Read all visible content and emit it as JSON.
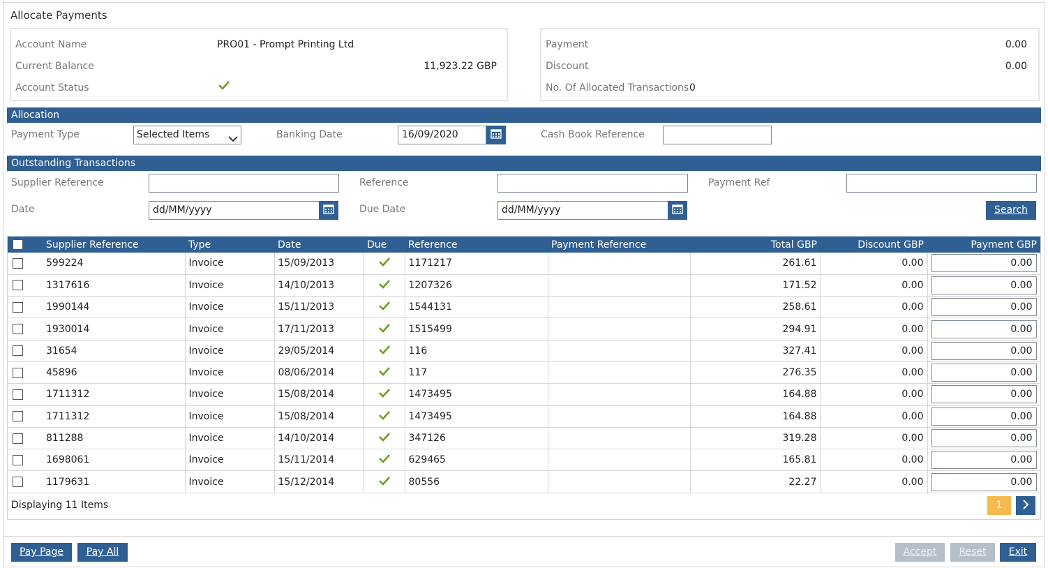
{
  "window": {
    "title": "Allocate Payments"
  },
  "account": {
    "name_label": "Account Name",
    "name_value": "PRO01 - Prompt Printing Ltd",
    "balance_label": "Current Balance",
    "balance_value": "11,923.22 GBP",
    "status_label": "Account Status",
    "status_icon": "check-icon"
  },
  "summary": {
    "payment_label": "Payment",
    "payment_value": "0.00",
    "discount_label": "Discount",
    "discount_value": "0.00",
    "allocated_label": "No. Of Allocated Transactions",
    "allocated_value": "0"
  },
  "allocation": {
    "section_title": "Allocation",
    "payment_type_label": "Payment Type",
    "payment_type_value": "Selected Items",
    "banking_date_label": "Banking Date",
    "banking_date_value": "16/09/2020",
    "cash_book_label": "Cash Book Reference",
    "cash_book_value": ""
  },
  "outstanding": {
    "section_title": "Outstanding Transactions",
    "supplier_ref_label": "Supplier Reference",
    "reference_label": "Reference",
    "payment_ref_label": "Payment Ref",
    "date_label": "Date",
    "date_placeholder": "dd/MM/yyyy",
    "due_date_label": "Due Date",
    "due_date_placeholder": "dd/MM/yyyy",
    "search_label": "Search"
  },
  "grid": {
    "columns": [
      "Supplier Reference",
      "Type",
      "Date",
      "Due",
      "Reference",
      "Payment Reference",
      "Total GBP",
      "Discount GBP",
      "Payment GBP"
    ],
    "rows": [
      {
        "supplier_ref": "599224",
        "type": "Invoice",
        "date": "15/09/2013",
        "reference": "1171217",
        "payment_ref": "",
        "total": "261.61",
        "discount": "0.00",
        "payment": "0.00"
      },
      {
        "supplier_ref": "1317616",
        "type": "Invoice",
        "date": "14/10/2013",
        "reference": "1207326",
        "payment_ref": "",
        "total": "171.52",
        "discount": "0.00",
        "payment": "0.00"
      },
      {
        "supplier_ref": "1990144",
        "type": "Invoice",
        "date": "15/11/2013",
        "reference": "1544131",
        "payment_ref": "",
        "total": "258.61",
        "discount": "0.00",
        "payment": "0.00"
      },
      {
        "supplier_ref": "1930014",
        "type": "Invoice",
        "date": "17/11/2013",
        "reference": "1515499",
        "payment_ref": "",
        "total": "294.91",
        "discount": "0.00",
        "payment": "0.00"
      },
      {
        "supplier_ref": "31654",
        "type": "Invoice",
        "date": "29/05/2014",
        "reference": "116",
        "payment_ref": "",
        "total": "327.41",
        "discount": "0.00",
        "payment": "0.00"
      },
      {
        "supplier_ref": "45896",
        "type": "Invoice",
        "date": "08/06/2014",
        "reference": "117",
        "payment_ref": "",
        "total": "276.35",
        "discount": "0.00",
        "payment": "0.00"
      },
      {
        "supplier_ref": "1711312",
        "type": "Invoice",
        "date": "15/08/2014",
        "reference": "1473495",
        "payment_ref": "",
        "total": "164.88",
        "discount": "0.00",
        "payment": "0.00"
      },
      {
        "supplier_ref": "1711312",
        "type": "Invoice",
        "date": "15/08/2014",
        "reference": "1473495",
        "payment_ref": "",
        "total": "164.88",
        "discount": "0.00",
        "payment": "0.00"
      },
      {
        "supplier_ref": "811288",
        "type": "Invoice",
        "date": "14/10/2014",
        "reference": "347126",
        "payment_ref": "",
        "total": "319.28",
        "discount": "0.00",
        "payment": "0.00"
      },
      {
        "supplier_ref": "1698061",
        "type": "Invoice",
        "date": "15/11/2014",
        "reference": "629465",
        "payment_ref": "",
        "total": "165.81",
        "discount": "0.00",
        "payment": "0.00"
      },
      {
        "supplier_ref": "1179631",
        "type": "Invoice",
        "date": "15/12/2014",
        "reference": "80556",
        "payment_ref": "",
        "total": "22.27",
        "discount": "0.00",
        "payment": "0.00"
      }
    ],
    "footer_text": "Displaying 11 Items",
    "current_page": "1"
  },
  "actions": {
    "pay_page": "Pay Page",
    "pay_all": "Pay All",
    "accept": "Accept",
    "reset": "Reset",
    "exit": "Exit"
  },
  "colors": {
    "accent": "#2f5f93",
    "check": "#6a9f1e",
    "pager_active": "#f5b94d"
  }
}
